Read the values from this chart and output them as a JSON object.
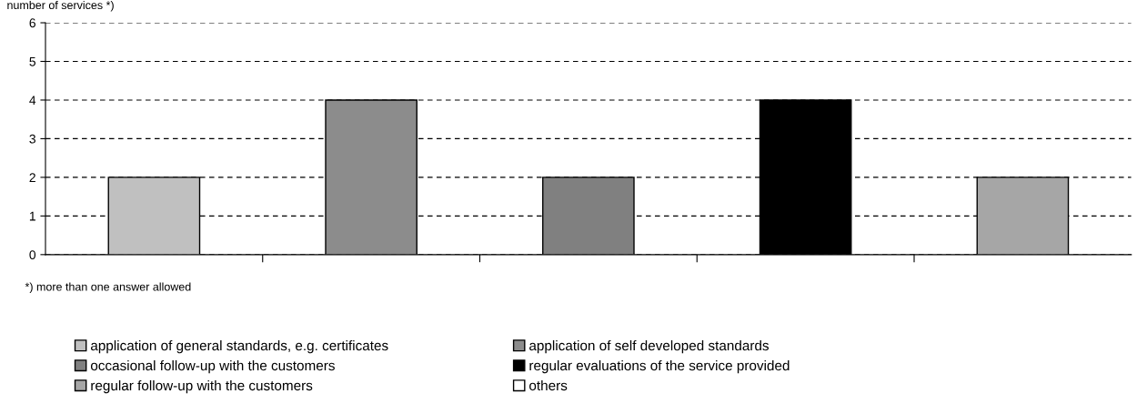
{
  "chart_data": {
    "type": "bar",
    "ylabel": "number of services *)",
    "categories": [
      null,
      null,
      null,
      null,
      null
    ],
    "series": [
      {
        "name": "application of general standards, e.g. certificates",
        "color": "#c0c0c0",
        "values": [
          2,
          null,
          null,
          null,
          null
        ]
      },
      {
        "name": "application of self developed standards",
        "color": "#8c8c8c",
        "values": [
          null,
          4,
          null,
          null,
          null
        ]
      },
      {
        "name": "occasional follow-up with the customers",
        "color": "#808080",
        "values": [
          null,
          null,
          2,
          null,
          null
        ]
      },
      {
        "name": "regular evaluations of the service provided",
        "color": "#000000",
        "values": [
          null,
          null,
          null,
          4,
          null
        ]
      },
      {
        "name": "regular follow-up with the customers",
        "color": "#a6a6a6",
        "values": [
          null,
          null,
          null,
          null,
          2
        ]
      },
      {
        "name": "others",
        "color": "#ffffff",
        "values": [
          null,
          null,
          null,
          null,
          null
        ]
      }
    ],
    "ylim": [
      0,
      6
    ],
    "yticks": [
      0,
      1,
      2,
      3,
      4,
      5,
      6
    ],
    "grid": "y",
    "legend": "bottom",
    "annotations": [
      "*) more than one answer allowed"
    ]
  }
}
